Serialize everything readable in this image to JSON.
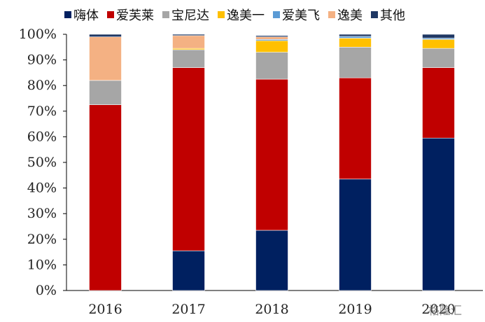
{
  "chart_data": {
    "type": "bar",
    "stacked": true,
    "categories": [
      "2016",
      "2017",
      "2018",
      "2019",
      "2020"
    ],
    "ylim": [
      0,
      100
    ],
    "yticks": [
      "0%",
      "10%",
      "20%",
      "30%",
      "40%",
      "50%",
      "60%",
      "70%",
      "80%",
      "90%",
      "100%"
    ],
    "legend_position": "top",
    "grid": false,
    "series": [
      {
        "name": "嗨体",
        "color": "#002060",
        "values": [
          0,
          15.5,
          23.5,
          43.5,
          59.5
        ]
      },
      {
        "name": "爱芙莱",
        "color": "#C00000",
        "values": [
          72.5,
          71.5,
          59,
          39.5,
          27.5
        ]
      },
      {
        "name": "宝尼达",
        "color": "#A6A6A6",
        "values": [
          9.5,
          7,
          10.5,
          12,
          7.5
        ]
      },
      {
        "name": "逸美一",
        "color": "#FFC000",
        "values": [
          0,
          0.5,
          4.5,
          3.5,
          3.5
        ]
      },
      {
        "name": "爱美飞",
        "color": "#5B9BD5",
        "values": [
          0,
          0,
          0.5,
          0.7,
          0.5
        ]
      },
      {
        "name": "逸美",
        "color": "#F4B183",
        "values": [
          17,
          5,
          1,
          0,
          0
        ]
      },
      {
        "name": "其他",
        "color": "#1F3864",
        "values": [
          1,
          0.5,
          0.5,
          0.8,
          1.5
        ]
      }
    ]
  },
  "watermark": "格隆汇"
}
